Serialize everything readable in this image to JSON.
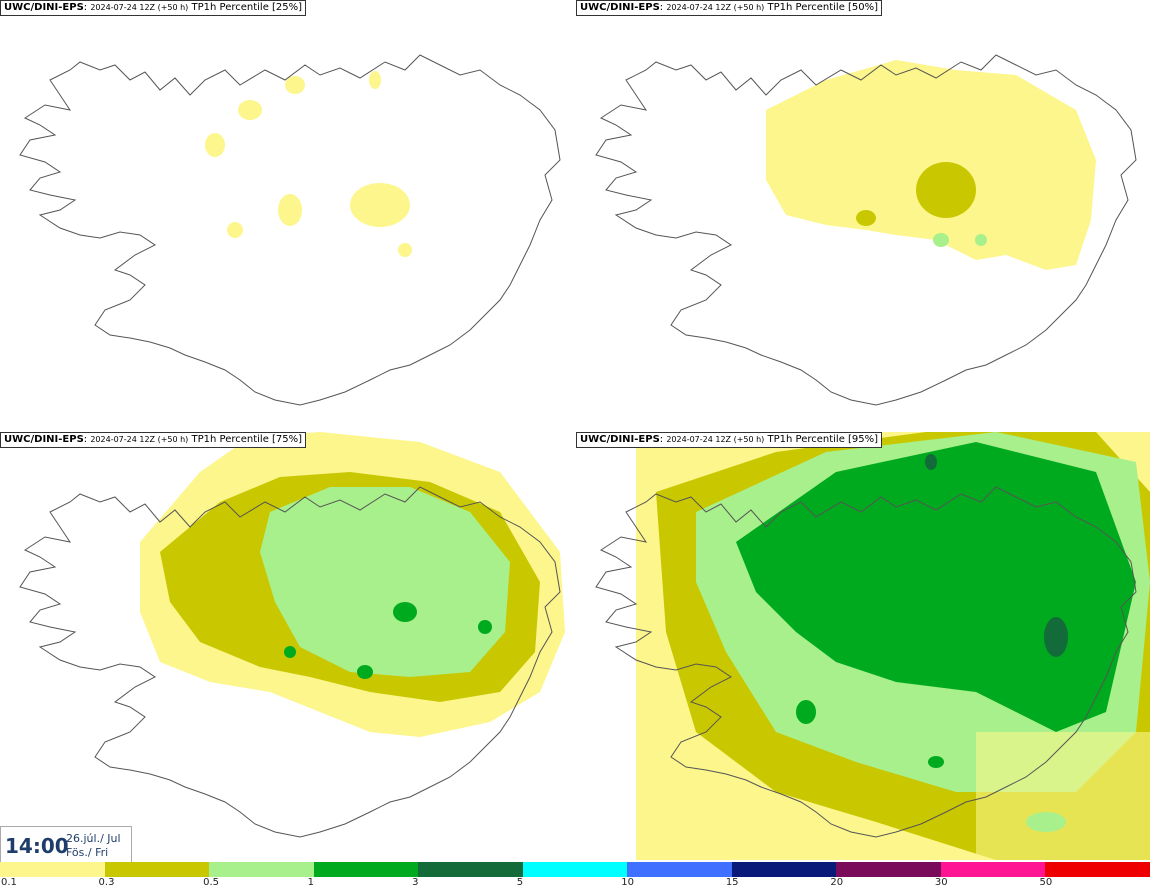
{
  "panels": [
    {
      "model": "UWC/DINI-EPS",
      "run": "2024-07-24 12Z (+50 h)",
      "product": "TP1h Percentile [25%]"
    },
    {
      "model": "UWC/DINI-EPS",
      "run": "2024-07-24 12Z (+50 h)",
      "product": "TP1h Percentile [50%]"
    },
    {
      "model": "UWC/DINI-EPS",
      "run": "2024-07-24 12Z (+50 h)",
      "product": "TP1h Percentile [75%]"
    },
    {
      "model": "UWC/DINI-EPS",
      "run": "2024-07-24 12Z (+50 h)",
      "product": "TP1h Percentile [95%]"
    }
  ],
  "time_box": {
    "time": "14:00",
    "date_line1": "26.júl./ Jul",
    "date_line2": "Fös./ Fri"
  },
  "colorbar": {
    "thresholds": [
      "0.1",
      "0.3",
      "0.5",
      "1",
      "3",
      "5",
      "10",
      "15",
      "20",
      "30",
      "50"
    ],
    "colors": [
      "#fcf68c",
      "#c9c800",
      "#a8f08c",
      "#00aa1e",
      "#136b3a",
      "#00ffff",
      "#3f70ff",
      "#0a1a78",
      "#7a0a5a",
      "#ff1493",
      "#ee0000"
    ]
  }
}
